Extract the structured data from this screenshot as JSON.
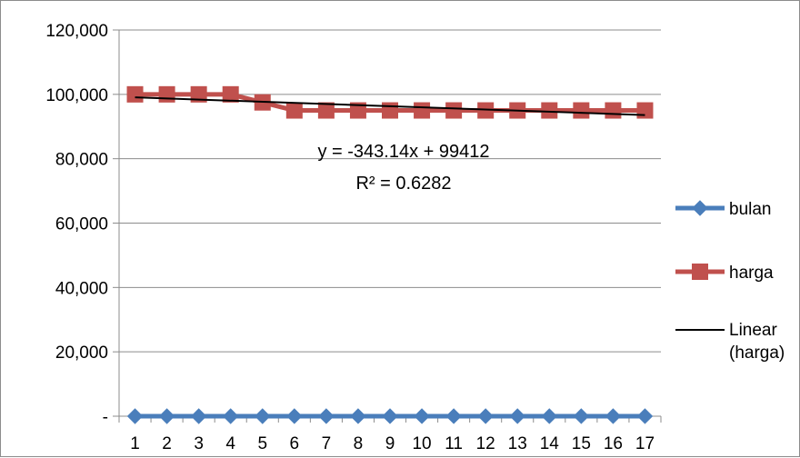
{
  "chart_data": {
    "type": "line",
    "title": "",
    "xlabel": "",
    "ylabel": "",
    "categories": [
      "1",
      "2",
      "3",
      "4",
      "5",
      "6",
      "7",
      "8",
      "9",
      "10",
      "11",
      "12",
      "13",
      "14",
      "15",
      "16",
      "17"
    ],
    "ylim": [
      0,
      120000
    ],
    "yticks": [
      0,
      20000,
      40000,
      60000,
      80000,
      100000,
      120000
    ],
    "ytick_labels": [
      "-",
      "20,000",
      "40,000",
      "60,000",
      "80,000",
      "100,000",
      "120,000"
    ],
    "grid": "horizontal",
    "legend_position": "right",
    "series": [
      {
        "name": "bulan",
        "color": "#4a7ebb",
        "marker": "diamond",
        "values": [
          1,
          2,
          3,
          4,
          5,
          6,
          7,
          8,
          9,
          10,
          11,
          12,
          13,
          14,
          15,
          16,
          17
        ]
      },
      {
        "name": "harga",
        "color": "#c0504d",
        "marker": "square",
        "values": [
          100000,
          100000,
          100000,
          100000,
          97500,
          95000,
          95000,
          95000,
          95000,
          95000,
          95000,
          95000,
          95000,
          95000,
          95000,
          95000,
          95000
        ]
      }
    ],
    "trendline": {
      "name": "Linear (harga)",
      "legend_lines": [
        "Linear",
        "(harga)"
      ],
      "color": "#000000",
      "slope": -343.14,
      "intercept": 99412,
      "equation": "y = -343.14x + 99412",
      "r_squared": "R² = 0.6282"
    }
  }
}
